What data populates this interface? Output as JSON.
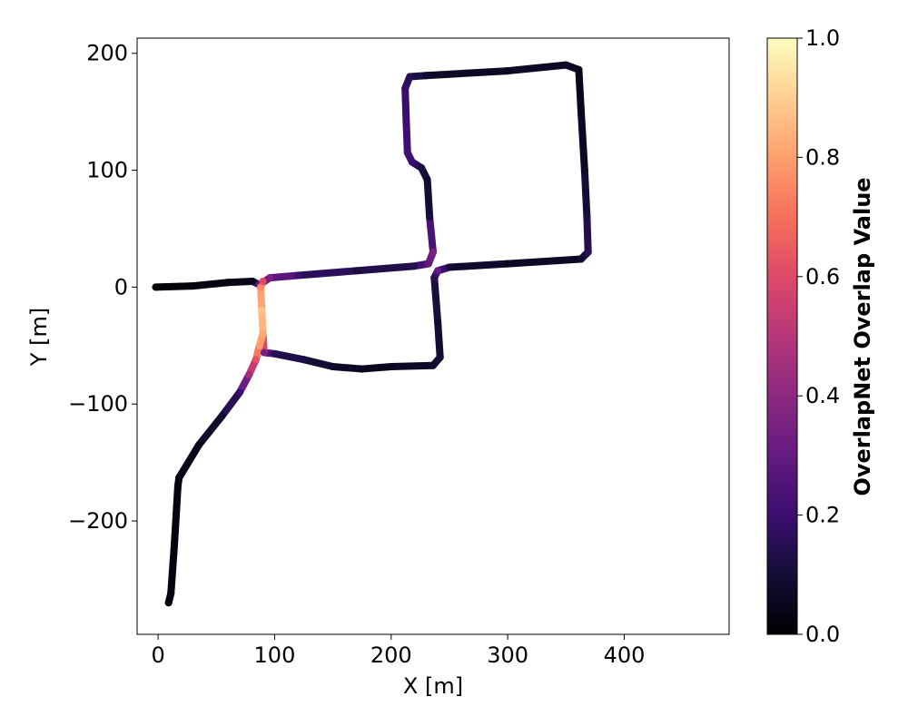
{
  "chart_data": {
    "type": "scatter",
    "xlabel": "X [m]",
    "ylabel": "Y [m]",
    "xlim": [
      -18,
      490
    ],
    "ylim": [
      -297,
      213
    ],
    "xticks": [
      0,
      100,
      200,
      300,
      400
    ],
    "yticks": [
      -200,
      -100,
      0,
      100,
      200
    ],
    "xtick_labels": [
      "0",
      "100",
      "200",
      "300",
      "400"
    ],
    "ytick_labels": [
      "−200",
      "−100",
      "0",
      "100",
      "200"
    ],
    "colormap": "magma",
    "colorbar": {
      "label": "OverlapNet Overlap Value",
      "range": [
        0.0,
        1.0
      ],
      "ticks": [
        0.0,
        0.2,
        0.4,
        0.6,
        0.8,
        1.0
      ],
      "tick_labels": [
        "0.0",
        "0.2",
        "0.4",
        "0.6",
        "0.8",
        "1.0"
      ]
    },
    "trajectory": [
      {
        "x": -2,
        "y": 0,
        "v": 0.0
      },
      {
        "x": 30,
        "y": 1,
        "v": 0.02
      },
      {
        "x": 60,
        "y": 4,
        "v": 0.03
      },
      {
        "x": 81,
        "y": 5,
        "v": 0.05
      },
      {
        "x": 87,
        "y": 2,
        "v": 0.3
      },
      {
        "x": 96,
        "y": 8,
        "v": 0.35
      },
      {
        "x": 120,
        "y": 10,
        "v": 0.2
      },
      {
        "x": 170,
        "y": 14,
        "v": 0.12
      },
      {
        "x": 220,
        "y": 18,
        "v": 0.15
      },
      {
        "x": 232,
        "y": 20,
        "v": 0.3
      },
      {
        "x": 236,
        "y": 30,
        "v": 0.35
      },
      {
        "x": 233,
        "y": 60,
        "v": 0.12
      },
      {
        "x": 231,
        "y": 92,
        "v": 0.08
      },
      {
        "x": 226,
        "y": 102,
        "v": 0.12
      },
      {
        "x": 218,
        "y": 107,
        "v": 0.2
      },
      {
        "x": 214,
        "y": 115,
        "v": 0.22
      },
      {
        "x": 213,
        "y": 140,
        "v": 0.2
      },
      {
        "x": 212,
        "y": 170,
        "v": 0.18
      },
      {
        "x": 216,
        "y": 180,
        "v": 0.15
      },
      {
        "x": 230,
        "y": 181,
        "v": 0.08
      },
      {
        "x": 300,
        "y": 185,
        "v": 0.05
      },
      {
        "x": 350,
        "y": 190,
        "v": 0.08
      },
      {
        "x": 361,
        "y": 186,
        "v": 0.05
      },
      {
        "x": 363,
        "y": 150,
        "v": 0.05
      },
      {
        "x": 366,
        "y": 100,
        "v": 0.08
      },
      {
        "x": 368,
        "y": 60,
        "v": 0.12
      },
      {
        "x": 369,
        "y": 30,
        "v": 0.15
      },
      {
        "x": 363,
        "y": 24,
        "v": 0.08
      },
      {
        "x": 300,
        "y": 20,
        "v": 0.05
      },
      {
        "x": 250,
        "y": 17,
        "v": 0.1
      },
      {
        "x": 240,
        "y": 14,
        "v": 0.3
      },
      {
        "x": 237,
        "y": 8,
        "v": 0.15
      },
      {
        "x": 240,
        "y": -30,
        "v": 0.08
      },
      {
        "x": 242,
        "y": -60,
        "v": 0.1
      },
      {
        "x": 236,
        "y": -67,
        "v": 0.08
      },
      {
        "x": 200,
        "y": -68,
        "v": 0.05
      },
      {
        "x": 175,
        "y": -70,
        "v": 0.05
      },
      {
        "x": 150,
        "y": -68,
        "v": 0.08
      },
      {
        "x": 125,
        "y": -62,
        "v": 0.12
      },
      {
        "x": 100,
        "y": -57,
        "v": 0.15
      },
      {
        "x": 91,
        "y": -56,
        "v": 0.35
      },
      {
        "x": 90,
        "y": -40,
        "v": 0.82
      },
      {
        "x": 89,
        "y": -20,
        "v": 0.88
      },
      {
        "x": 88,
        "y": 0,
        "v": 0.75
      },
      {
        "x": 90,
        "y": 5,
        "v": 0.6
      },
      {
        "x": 87,
        "y": -50,
        "v": 0.8
      },
      {
        "x": 84,
        "y": -62,
        "v": 0.62
      },
      {
        "x": 78,
        "y": -75,
        "v": 0.45
      },
      {
        "x": 70,
        "y": -90,
        "v": 0.2
      },
      {
        "x": 55,
        "y": -110,
        "v": 0.1
      },
      {
        "x": 35,
        "y": -135,
        "v": 0.05
      },
      {
        "x": 18,
        "y": -163,
        "v": 0.03
      },
      {
        "x": 17,
        "y": -170,
        "v": 0.02
      },
      {
        "x": 14,
        "y": -220,
        "v": 0.02
      },
      {
        "x": 11,
        "y": -262,
        "v": 0.02
      },
      {
        "x": 9,
        "y": -270,
        "v": 0.01
      }
    ]
  }
}
